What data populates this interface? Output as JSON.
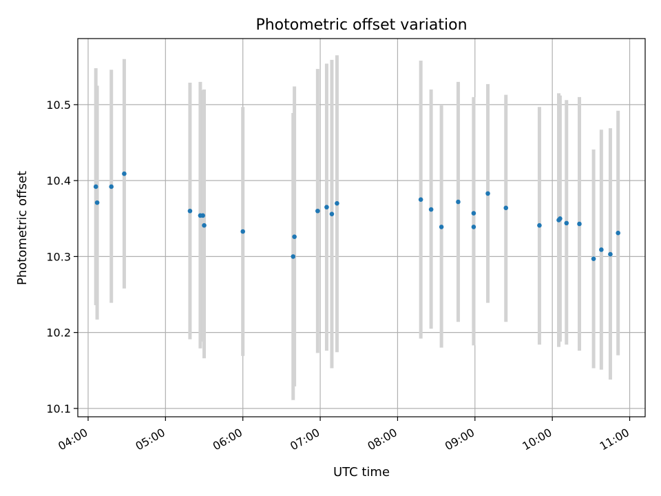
{
  "chart_data": {
    "type": "scatter",
    "title": "Photometric offset variation",
    "xlabel": "UTC time",
    "ylabel": "Photometric offset",
    "x_ticks": [
      "04:00",
      "05:00",
      "06:00",
      "07:00",
      "08:00",
      "09:00",
      "10:00",
      "11:00"
    ],
    "y_ticks": [
      "10.1",
      "10.2",
      "10.3",
      "10.4",
      "10.5"
    ],
    "xlim": [
      "03:52",
      "11:12"
    ],
    "ylim": [
      10.089,
      10.587
    ],
    "grid": true,
    "point_color": "#1f77b4",
    "errorbar_color": "#d3d3d3",
    "points": [
      {
        "time": "04:06",
        "value": 10.392,
        "low": 10.236,
        "high": 10.548
      },
      {
        "time": "04:07",
        "value": 10.371,
        "low": 10.217,
        "high": 10.525
      },
      {
        "time": "04:18",
        "value": 10.392,
        "low": 10.239,
        "high": 10.546
      },
      {
        "time": "04:28",
        "value": 10.409,
        "low": 10.258,
        "high": 10.56
      },
      {
        "time": "05:19",
        "value": 10.36,
        "low": 10.191,
        "high": 10.529
      },
      {
        "time": "05:27",
        "value": 10.354,
        "low": 10.179,
        "high": 10.53
      },
      {
        "time": "05:29",
        "value": 10.354,
        "low": 10.188,
        "high": 10.519
      },
      {
        "time": "05:30",
        "value": 10.341,
        "low": 10.166,
        "high": 10.52
      },
      {
        "time": "06:00",
        "value": 10.333,
        "low": 10.169,
        "high": 10.497
      },
      {
        "time": "06:39",
        "value": 10.3,
        "low": 10.111,
        "high": 10.489
      },
      {
        "time": "06:40",
        "value": 10.326,
        "low": 10.129,
        "high": 10.524
      },
      {
        "time": "06:58",
        "value": 10.36,
        "low": 10.173,
        "high": 10.547
      },
      {
        "time": "07:05",
        "value": 10.365,
        "low": 10.176,
        "high": 10.554
      },
      {
        "time": "07:09",
        "value": 10.356,
        "low": 10.153,
        "high": 10.559
      },
      {
        "time": "07:13",
        "value": 10.37,
        "low": 10.174,
        "high": 10.565
      },
      {
        "time": "08:18",
        "value": 10.375,
        "low": 10.192,
        "high": 10.558
      },
      {
        "time": "08:26",
        "value": 10.362,
        "low": 10.205,
        "high": 10.52
      },
      {
        "time": "08:34",
        "value": 10.339,
        "low": 10.18,
        "high": 10.499
      },
      {
        "time": "08:47",
        "value": 10.372,
        "low": 10.214,
        "high": 10.53
      },
      {
        "time": "08:59",
        "value": 10.339,
        "low": 10.183,
        "high": 10.51
      },
      {
        "time": "08:59",
        "value": 10.357,
        "low": 10.205,
        "high": 10.509
      },
      {
        "time": "09:10",
        "value": 10.383,
        "low": 10.239,
        "high": 10.527
      },
      {
        "time": "09:24",
        "value": 10.364,
        "low": 10.214,
        "high": 10.513
      },
      {
        "time": "09:50",
        "value": 10.341,
        "low": 10.184,
        "high": 10.497
      },
      {
        "time": "10:05",
        "value": 10.348,
        "low": 10.181,
        "high": 10.515
      },
      {
        "time": "10:06",
        "value": 10.35,
        "low": 10.188,
        "high": 10.512
      },
      {
        "time": "10:11",
        "value": 10.344,
        "low": 10.184,
        "high": 10.506
      },
      {
        "time": "10:21",
        "value": 10.343,
        "low": 10.176,
        "high": 10.51
      },
      {
        "time": "10:32",
        "value": 10.297,
        "low": 10.153,
        "high": 10.441
      },
      {
        "time": "10:38",
        "value": 10.309,
        "low": 10.151,
        "high": 10.467
      },
      {
        "time": "10:45",
        "value": 10.303,
        "low": 10.138,
        "high": 10.469
      },
      {
        "time": "10:51",
        "value": 10.331,
        "low": 10.17,
        "high": 10.492
      }
    ]
  }
}
